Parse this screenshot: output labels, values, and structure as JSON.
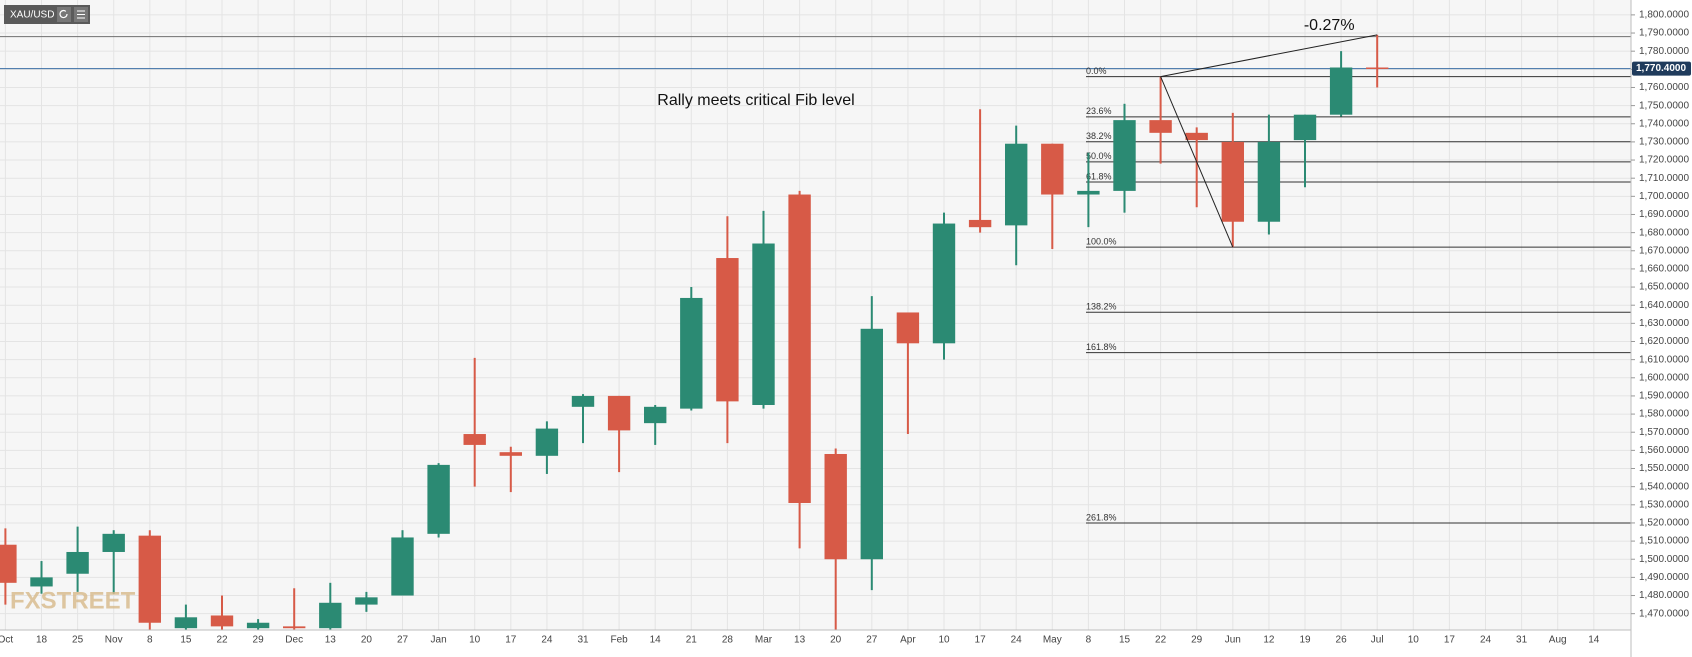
{
  "chart_data": {
    "type": "candlestick",
    "symbol": "XAU/USD",
    "title": "Rally meets critical Fib level",
    "annotation": "-0.27%",
    "watermark": "FXSTREET",
    "categories": [
      "Oct",
      "18",
      "25",
      "Nov",
      "8",
      "15",
      "22",
      "29",
      "Dec",
      "13",
      "20",
      "27",
      "Jan",
      "10",
      "17",
      "24",
      "31",
      "Feb",
      "14",
      "21",
      "28",
      "Mar",
      "13",
      "20",
      "27",
      "Apr",
      "10",
      "17",
      "24",
      "May",
      "8",
      "15",
      "22",
      "29",
      "Jun",
      "12",
      "19",
      "26",
      "Jul",
      "10",
      "17",
      "24",
      "31",
      "Aug",
      "14"
    ],
    "open": [
      1508,
      1485,
      1492,
      1504,
      1513,
      1462,
      1469,
      1462,
      1463,
      1462,
      1475,
      1480,
      1514,
      1569,
      1559,
      1557,
      1584,
      1590,
      1575,
      1583,
      1666,
      1585,
      1701,
      1558,
      1500,
      1636,
      1619,
      1687,
      1684,
      1729,
      1701,
      1703,
      1742,
      1735,
      1730,
      1686,
      1731,
      1745,
      1771,
      null,
      null,
      null,
      null,
      null,
      null
    ],
    "high": [
      1517,
      1499,
      1518,
      1516,
      1516,
      1475,
      1480,
      1467,
      1484,
      1487,
      1482,
      1516,
      1553,
      1611,
      1562,
      1576,
      1591,
      1590,
      1585,
      1650,
      1689,
      1692,
      1703,
      1561,
      1645,
      1636,
      1691,
      1748,
      1739,
      1729,
      1724,
      1751,
      1766,
      1738,
      1746,
      1745,
      1745,
      1780,
      1789,
      null,
      null,
      null,
      null,
      null,
      null
    ],
    "low": [
      1475,
      1481,
      1482,
      1481,
      1461,
      1461,
      1461,
      1461,
      1461,
      1461,
      1471,
      1480,
      1512,
      1540,
      1537,
      1547,
      1564,
      1548,
      1563,
      1582,
      1564,
      1583,
      1506,
      1461,
      1483,
      1569,
      1610,
      1680,
      1662,
      1671,
      1683,
      1691,
      1718,
      1694,
      1672,
      1679,
      1705,
      1744,
      1760,
      null,
      null,
      null,
      null,
      null,
      null
    ],
    "close": [
      1487,
      1490,
      1504,
      1514,
      1465,
      1468,
      1463,
      1465,
      1462,
      1476,
      1479,
      1512,
      1552,
      1563,
      1557,
      1572,
      1590,
      1571,
      1584,
      1644,
      1587,
      1674,
      1531,
      1500,
      1627,
      1619,
      1685,
      1683,
      1729,
      1701,
      1703,
      1742,
      1735,
      1731,
      1686,
      1730,
      1745,
      1771,
      1770.4,
      null,
      null,
      null,
      null,
      null,
      null
    ],
    "up_color": "#2b8a73",
    "down_color": "#d75a47",
    "ylim": [
      1461,
      1806
    ],
    "yticks": [
      {
        "value": 1470,
        "label": "1,470.0000"
      },
      {
        "value": 1480,
        "label": "1,480.0000"
      },
      {
        "value": 1490,
        "label": "1,490.0000"
      },
      {
        "value": 1500,
        "label": "1,500.0000"
      },
      {
        "value": 1510,
        "label": "1,510.0000"
      },
      {
        "value": 1520,
        "label": "1,520.0000"
      },
      {
        "value": 1530,
        "label": "1,530.0000"
      },
      {
        "value": 1540,
        "label": "1,540.0000"
      },
      {
        "value": 1550,
        "label": "1,550.0000"
      },
      {
        "value": 1560,
        "label": "1,560.0000"
      },
      {
        "value": 1570,
        "label": "1,570.0000"
      },
      {
        "value": 1580,
        "label": "1,580.0000"
      },
      {
        "value": 1590,
        "label": "1,590.0000"
      },
      {
        "value": 1600,
        "label": "1,600.0000"
      },
      {
        "value": 1610,
        "label": "1,610.0000"
      },
      {
        "value": 1620,
        "label": "1,620.0000"
      },
      {
        "value": 1630,
        "label": "1,630.0000"
      },
      {
        "value": 1640,
        "label": "1,640.0000"
      },
      {
        "value": 1650,
        "label": "1,650.0000"
      },
      {
        "value": 1660,
        "label": "1,660.0000"
      },
      {
        "value": 1670,
        "label": "1,670.0000"
      },
      {
        "value": 1680,
        "label": "1,680.0000"
      },
      {
        "value": 1690,
        "label": "1,690.0000"
      },
      {
        "value": 1700,
        "label": "1,700.0000"
      },
      {
        "value": 1710,
        "label": "1,710.0000"
      },
      {
        "value": 1720,
        "label": "1,720.0000"
      },
      {
        "value": 1730,
        "label": "1,730.0000"
      },
      {
        "value": 1740,
        "label": "1,740.0000"
      },
      {
        "value": 1750,
        "label": "1,750.0000"
      },
      {
        "value": 1760,
        "label": "1,760.0000"
      },
      {
        "value": 1770,
        "label": "1,770.0000"
      },
      {
        "value": 1780,
        "label": "1,780.0000"
      },
      {
        "value": 1790,
        "label": "1,790.0000"
      },
      {
        "value": 1800,
        "label": "1,800.0000"
      }
    ],
    "grid": true,
    "last_price": {
      "value": 1770.4,
      "label": "1,770.4000",
      "color": "#3a6ea5"
    },
    "horizontal_lines": [
      1788
    ],
    "fib_levels": [
      {
        "label": "0.0%",
        "value": 1766
      },
      {
        "label": "23.6%",
        "value": 1743.8
      },
      {
        "label": "38.2%",
        "value": 1730.1
      },
      {
        "label": "50.0%",
        "value": 1719
      },
      {
        "label": "61.8%",
        "value": 1707.9
      },
      {
        "label": "100.0%",
        "value": 1672
      },
      {
        "label": "138.2%",
        "value": 1636.1
      },
      {
        "label": "161.8%",
        "value": 1613.9
      },
      {
        "label": "261.8%",
        "value": 1520
      }
    ]
  }
}
